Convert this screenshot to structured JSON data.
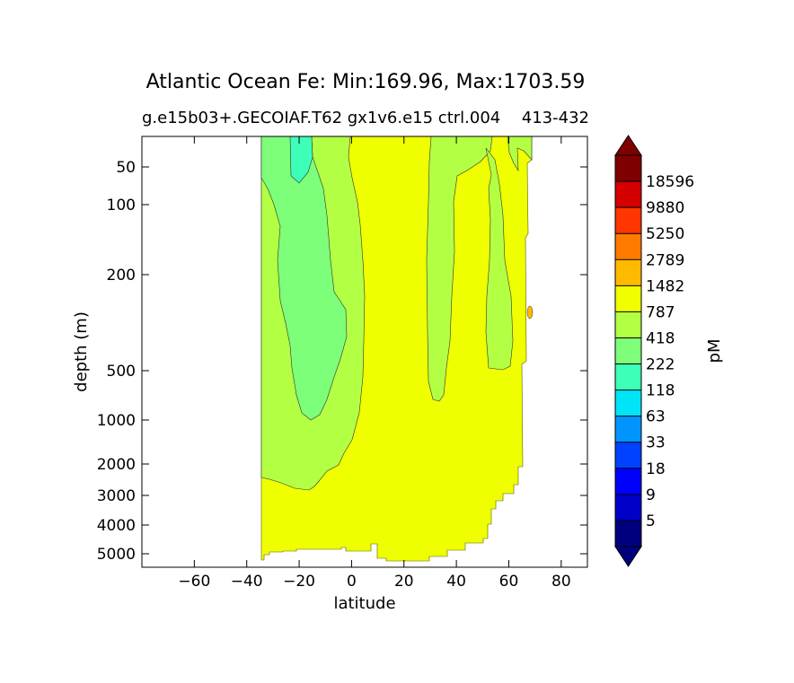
{
  "chart_data": {
    "type": "heatmap",
    "subtype": "filled-contour",
    "title": "Atlantic Ocean Fe: Min:169.96, Max:1703.59",
    "subtitle": "g.e15b03+.GECOIAF.T62 gx1v6.e15 ctrl.004",
    "subtitle_right": "413-432",
    "xlabel": "latitude",
    "ylabel": "depth (m)",
    "xlim": [
      -80,
      90
    ],
    "x_ticks": [
      -60,
      -40,
      -20,
      0,
      20,
      40,
      60,
      80
    ],
    "x_tick_labels": [
      "−60",
      "−40",
      "−20",
      "0",
      "20",
      "40",
      "60",
      "80"
    ],
    "y_ticks": [
      50,
      100,
      200,
      500,
      1000,
      2000,
      3000,
      4000,
      5000
    ],
    "y_tick_labels": [
      "50",
      "100",
      "200",
      "500",
      "1000",
      "2000",
      "3000",
      "4000",
      "5000"
    ],
    "y_inverted": true,
    "colorbar": {
      "label": "pM",
      "extend": "both",
      "levels": [
        5,
        9,
        18,
        33,
        63,
        118,
        222,
        418,
        787,
        1482,
        2789,
        5250,
        9880,
        18596
      ],
      "level_labels": [
        "5",
        "9",
        "18",
        "33",
        "63",
        "118",
        "222",
        "418",
        "787",
        "1482",
        "2789",
        "5250",
        "9880",
        "18596"
      ],
      "colors": [
        "#00007f",
        "#0000c8",
        "#0000ff",
        "#0042ff",
        "#0094ff",
        "#00e4f8",
        "#3effb8",
        "#7dff7a",
        "#b3ff44",
        "#f0ff00",
        "#ffba00",
        "#ff7b00",
        "#ff3600",
        "#d40000",
        "#7f0000"
      ],
      "under_color": "#00007f",
      "over_color": "#7f0000"
    },
    "regions": [
      {
        "name": "background",
        "level_range": [
          787,
          1482
        ],
        "color": "#f0ff00"
      },
      {
        "name": "south-atlantic-intermediate",
        "level_range": [
          418,
          787
        ],
        "color": "#b3ff44"
      },
      {
        "name": "south-atlantic-core",
        "level_range": [
          222,
          418
        ],
        "color": "#7dff7a"
      },
      {
        "name": "south-atlantic-surface",
        "level_range": [
          118,
          222
        ],
        "color": "#3effb8"
      },
      {
        "name": "north-atlantic-column",
        "level_range": [
          418,
          787
        ],
        "color": "#b3ff44"
      },
      {
        "name": "subpolar-column",
        "level_range": [
          418,
          787
        ],
        "color": "#b3ff44"
      },
      {
        "name": "arctic-surface-tongue",
        "level_range": [
          418,
          787
        ],
        "color": "#b3ff44"
      },
      {
        "name": "high-latitude-spot",
        "level_range": [
          1482,
          2789
        ],
        "color": "#ffba00"
      }
    ]
  }
}
